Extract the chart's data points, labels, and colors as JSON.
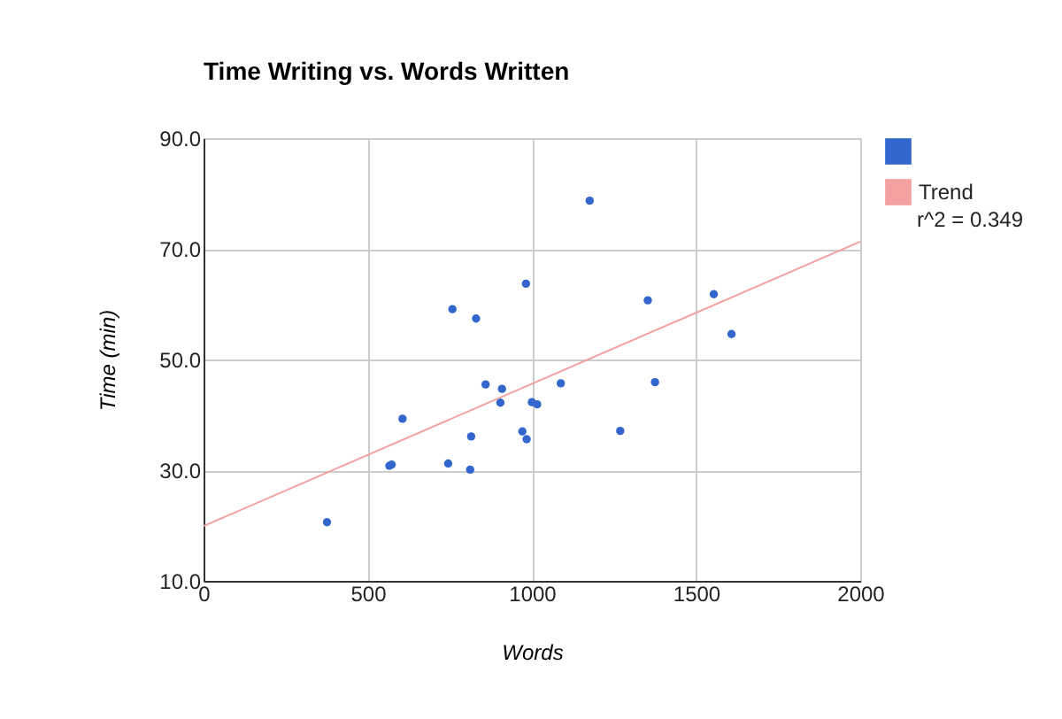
{
  "chart_data": {
    "type": "scatter",
    "title": "Time Writing vs. Words Written",
    "xlabel": "Words",
    "ylabel": "Time (min)",
    "xlim": [
      0,
      2000
    ],
    "xticks": [
      0,
      500,
      1000,
      1500,
      2000
    ],
    "ylim": [
      10,
      90
    ],
    "yticks": [
      {
        "value": 10,
        "label": "10.0"
      },
      {
        "value": 30,
        "label": "30.0"
      },
      {
        "value": 50,
        "label": "50.0"
      },
      {
        "value": 70,
        "label": "70.0"
      },
      {
        "value": 90,
        "label": "90.0"
      }
    ],
    "grid": true,
    "legend": "right",
    "annotations": [
      "r^2 = 0.349"
    ],
    "series": [
      {
        "color": "#3366cc",
        "marker": "circle",
        "x": [
          376,
          566,
          573,
          606,
          745,
          758,
          812,
          815,
          830,
          859,
          909,
          904,
          971,
          984,
          982,
          1000,
          1016,
          1088,
          1176,
          1269,
          1353,
          1375,
          1554,
          1608
        ],
        "values": [
          20.6,
          30.8,
          31.0,
          39.3,
          31.2,
          59.1,
          30.1,
          36.1,
          57.4,
          45.5,
          44.7,
          42.2,
          37.0,
          35.6,
          63.7,
          42.3,
          41.9,
          45.7,
          78.7,
          37.1,
          60.7,
          45.9,
          61.8,
          54.6
        ]
      },
      {
        "name": "Trend",
        "type": "line",
        "color": "#f4a0a0",
        "x": [
          0,
          2000
        ],
        "values": [
          19.9,
          71.3
        ]
      }
    ]
  }
}
